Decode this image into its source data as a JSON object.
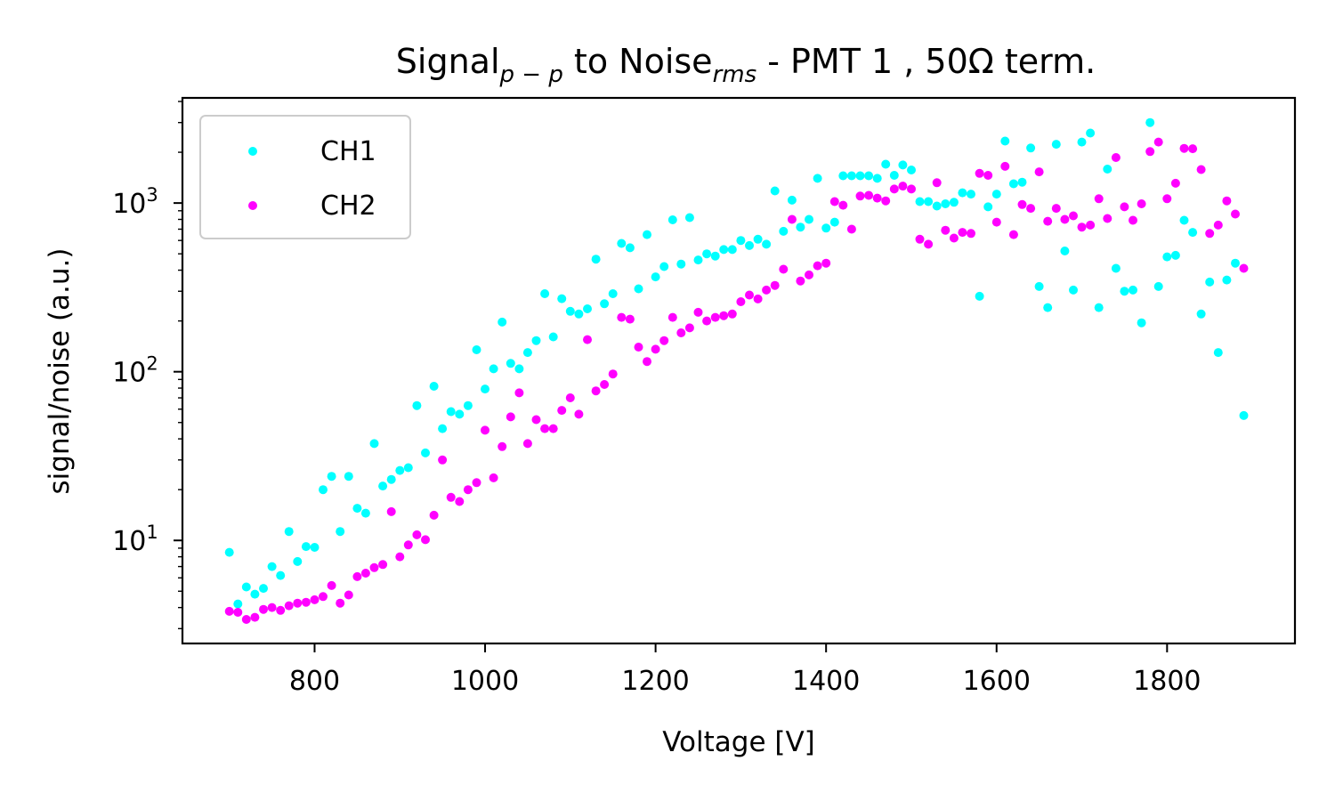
{
  "chart_data": {
    "type": "scatter",
    "title": {
      "main": "Signal",
      "sub1": "p − p",
      "mid": " to Noise",
      "sub2": "rms",
      "tail": " - PMT 1 ,  50Ω term."
    },
    "xlabel": "Voltage [V]",
    "ylabel": "signal/noise (a.u.)",
    "xlim": [
      645,
      1950
    ],
    "ylim": [
      2.45,
      4200
    ],
    "yscale": "log",
    "grid": false,
    "legend_position": "upper-left",
    "x_ticks": [
      800,
      1000,
      1200,
      1400,
      1600,
      1800
    ],
    "x_tick_labels": [
      "800",
      "1000",
      "1200",
      "1400",
      "1600",
      "1800"
    ],
    "y_ticks": [
      10,
      100,
      1000
    ],
    "y_tick_labels": [
      {
        "base": "10",
        "exp": "1"
      },
      {
        "base": "10",
        "exp": "2"
      },
      {
        "base": "10",
        "exp": "3"
      }
    ],
    "series": [
      {
        "name": "CH1",
        "color": "#00ffff",
        "x": [
          700,
          710,
          720,
          730,
          740,
          750,
          760,
          770,
          780,
          790,
          800,
          810,
          820,
          830,
          840,
          850,
          860,
          870,
          880,
          890,
          900,
          910,
          920,
          930,
          940,
          950,
          960,
          970,
          980,
          990,
          1000,
          1010,
          1020,
          1030,
          1040,
          1050,
          1060,
          1070,
          1080,
          1090,
          1100,
          1110,
          1120,
          1130,
          1140,
          1150,
          1160,
          1170,
          1180,
          1190,
          1200,
          1210,
          1220,
          1230,
          1240,
          1250,
          1260,
          1270,
          1280,
          1290,
          1300,
          1310,
          1320,
          1330,
          1340,
          1350,
          1360,
          1370,
          1380,
          1390,
          1400,
          1410,
          1420,
          1430,
          1440,
          1450,
          1460,
          1470,
          1480,
          1490,
          1500,
          1510,
          1520,
          1530,
          1540,
          1550,
          1560,
          1570,
          1580,
          1590,
          1600,
          1610,
          1620,
          1630,
          1640,
          1650,
          1660,
          1670,
          1680,
          1690,
          1700,
          1710,
          1720,
          1730,
          1740,
          1750,
          1760,
          1770,
          1780,
          1790,
          1800,
          1810,
          1820,
          1830,
          1840,
          1850,
          1860,
          1870,
          1880,
          1890
        ],
        "y": [
          8.5,
          4.2,
          5.3,
          4.8,
          5.2,
          7.0,
          6.2,
          11.3,
          7.5,
          9.2,
          9.1,
          20,
          24,
          11.3,
          24,
          15.5,
          14.5,
          37.5,
          21,
          23,
          26,
          27,
          63,
          33,
          82,
          46,
          58,
          56,
          63,
          135,
          79,
          104,
          197,
          112,
          104,
          130,
          153,
          290,
          161,
          271,
          228,
          220,
          236,
          465,
          253,
          290,
          576,
          543,
          310,
          650,
          365,
          420,
          795,
          435,
          820,
          460,
          500,
          485,
          530,
          530,
          600,
          560,
          610,
          570,
          1180,
          680,
          1040,
          720,
          800,
          1400,
          710,
          770,
          1450,
          1450,
          1450,
          1450,
          1400,
          1700,
          1460,
          1680,
          1570,
          1020,
          1020,
          960,
          990,
          1010,
          1150,
          1130,
          280,
          950,
          1130,
          2330,
          1300,
          1330,
          2120,
          320,
          240,
          2230,
          520,
          305,
          2300,
          2600,
          240,
          1590,
          410,
          300,
          305,
          195,
          3000,
          320,
          480,
          490,
          790,
          670,
          220,
          340,
          130,
          350,
          440,
          55
        ]
      },
      {
        "name": "CH2",
        "color": "#ff00ff",
        "x": [
          700,
          710,
          720,
          730,
          740,
          750,
          760,
          770,
          780,
          790,
          800,
          810,
          820,
          830,
          840,
          850,
          860,
          870,
          880,
          890,
          900,
          910,
          920,
          930,
          940,
          950,
          960,
          970,
          980,
          990,
          1000,
          1010,
          1020,
          1030,
          1040,
          1050,
          1060,
          1070,
          1080,
          1090,
          1100,
          1110,
          1120,
          1130,
          1140,
          1150,
          1160,
          1170,
          1180,
          1190,
          1200,
          1210,
          1220,
          1230,
          1240,
          1250,
          1260,
          1270,
          1280,
          1290,
          1300,
          1310,
          1320,
          1330,
          1340,
          1350,
          1360,
          1370,
          1380,
          1390,
          1400,
          1410,
          1420,
          1430,
          1440,
          1450,
          1460,
          1470,
          1480,
          1490,
          1500,
          1510,
          1520,
          1530,
          1540,
          1550,
          1560,
          1570,
          1580,
          1590,
          1600,
          1610,
          1620,
          1630,
          1640,
          1650,
          1660,
          1670,
          1680,
          1690,
          1700,
          1710,
          1720,
          1730,
          1740,
          1750,
          1760,
          1770,
          1780,
          1790,
          1800,
          1810,
          1820,
          1830,
          1840,
          1850,
          1860,
          1870,
          1880,
          1890
        ],
        "y": [
          3.8,
          3.75,
          3.4,
          3.5,
          3.9,
          4.0,
          3.85,
          4.1,
          4.25,
          4.3,
          4.45,
          4.65,
          5.4,
          4.25,
          4.75,
          6.1,
          6.4,
          6.9,
          7.2,
          14.8,
          8.0,
          9.4,
          10.8,
          10.1,
          14.1,
          30,
          18,
          17,
          20,
          22,
          45,
          23.5,
          36,
          54,
          75,
          37.5,
          52,
          46,
          46,
          59,
          70,
          56,
          155,
          77,
          84,
          97,
          210,
          205,
          140,
          115,
          136,
          153,
          210,
          170,
          182,
          225,
          200,
          210,
          215,
          220,
          260,
          285,
          270,
          305,
          325,
          405,
          800,
          345,
          375,
          425,
          440,
          1020,
          970,
          700,
          1100,
          1110,
          1070,
          1030,
          1210,
          1260,
          1210,
          610,
          570,
          1320,
          690,
          620,
          670,
          660,
          1500,
          1460,
          770,
          1650,
          650,
          980,
          930,
          1530,
          780,
          930,
          800,
          840,
          720,
          740,
          1060,
          810,
          1860,
          950,
          790,
          990,
          2020,
          2300,
          1060,
          1310,
          2110,
          2100,
          1580,
          660,
          740,
          1030,
          860,
          410
        ]
      }
    ]
  }
}
